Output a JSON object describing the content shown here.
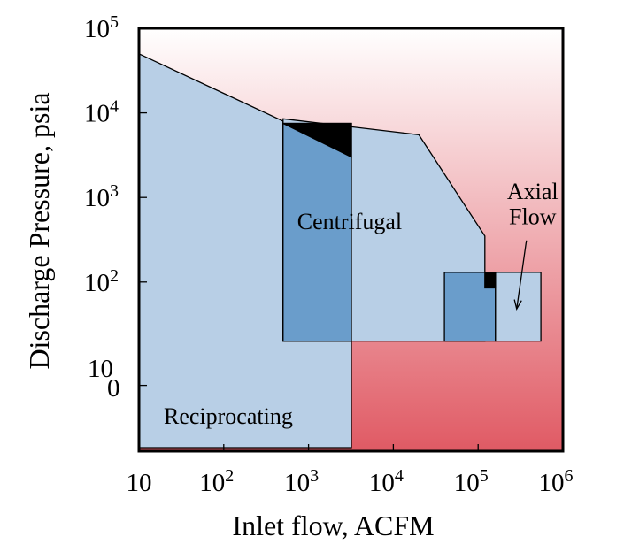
{
  "chart_data": {
    "type": "area",
    "title": "",
    "xlabel": "Inlet flow, ACFM",
    "ylabel": "Discharge Pressure, psia",
    "x_scale": "log",
    "y_scale": "log",
    "xlim": [
      10,
      1000000
    ],
    "ylim": [
      1,
      100000
    ],
    "x_ticks": [
      {
        "base": "10",
        "exp": ""
      },
      {
        "base": "10",
        "exp": "2"
      },
      {
        "base": "10",
        "exp": "3"
      },
      {
        "base": "10",
        "exp": "4"
      },
      {
        "base": "10",
        "exp": "5"
      },
      {
        "base": "10",
        "exp": "6"
      }
    ],
    "y_ticks": [
      {
        "base": "10",
        "exp": "5"
      },
      {
        "base": "10",
        "exp": "4"
      },
      {
        "base": "10",
        "exp": "3"
      },
      {
        "base": "10",
        "exp": "2"
      },
      {
        "base": "10",
        "exp": "0"
      }
    ],
    "regions": [
      {
        "name": "Reciprocating",
        "color": "#b8cfe6",
        "points": [
          [
            10,
            50000
          ],
          [
            500,
            8000
          ],
          [
            500,
            20
          ],
          [
            3200,
            20
          ],
          [
            3200,
            1.1
          ],
          [
            10,
            1.1
          ]
        ]
      },
      {
        "name": "Centrifugal",
        "color": "#b8cfe6",
        "points": [
          [
            500,
            8500
          ],
          [
            20000,
            5500
          ],
          [
            120000,
            350
          ],
          [
            120000,
            20
          ],
          [
            500,
            20
          ]
        ]
      },
      {
        "name": "overlap-reciprocating-centrifugal",
        "color": "#6a9dcb",
        "points": [
          [
            500,
            7500
          ],
          [
            3200,
            7500
          ],
          [
            3200,
            20
          ],
          [
            500,
            20
          ]
        ]
      },
      {
        "name": "overlap-centrifugal-axial",
        "color": "#6a9dcb",
        "points": [
          [
            40000,
            130
          ],
          [
            160000,
            130
          ],
          [
            160000,
            20
          ],
          [
            40000,
            20
          ]
        ]
      },
      {
        "name": "Axial Flow",
        "color": "#b8cfe6",
        "points": [
          [
            160000,
            130
          ],
          [
            550000,
            130
          ],
          [
            550000,
            20
          ],
          [
            160000,
            20
          ]
        ]
      },
      {
        "name": "triple-overlap-high",
        "color": "#000000",
        "points": [
          [
            500,
            7500
          ],
          [
            3200,
            7500
          ],
          [
            3200,
            3000
          ]
        ]
      },
      {
        "name": "triple-overlap-small",
        "color": "#000000",
        "points": [
          [
            120000,
            130
          ],
          [
            160000,
            130
          ],
          [
            160000,
            85
          ],
          [
            120000,
            85
          ]
        ]
      }
    ],
    "labels": {
      "reciprocating": "Reciprocating",
      "centrifugal": "Centrifugal",
      "axial_line1": "Axial",
      "axial_line2": "Flow"
    },
    "colors": {
      "background_top": "#ffffff",
      "background_bottom": "#e05a64",
      "frame": "#000000"
    },
    "grid": false,
    "legend": "none"
  }
}
